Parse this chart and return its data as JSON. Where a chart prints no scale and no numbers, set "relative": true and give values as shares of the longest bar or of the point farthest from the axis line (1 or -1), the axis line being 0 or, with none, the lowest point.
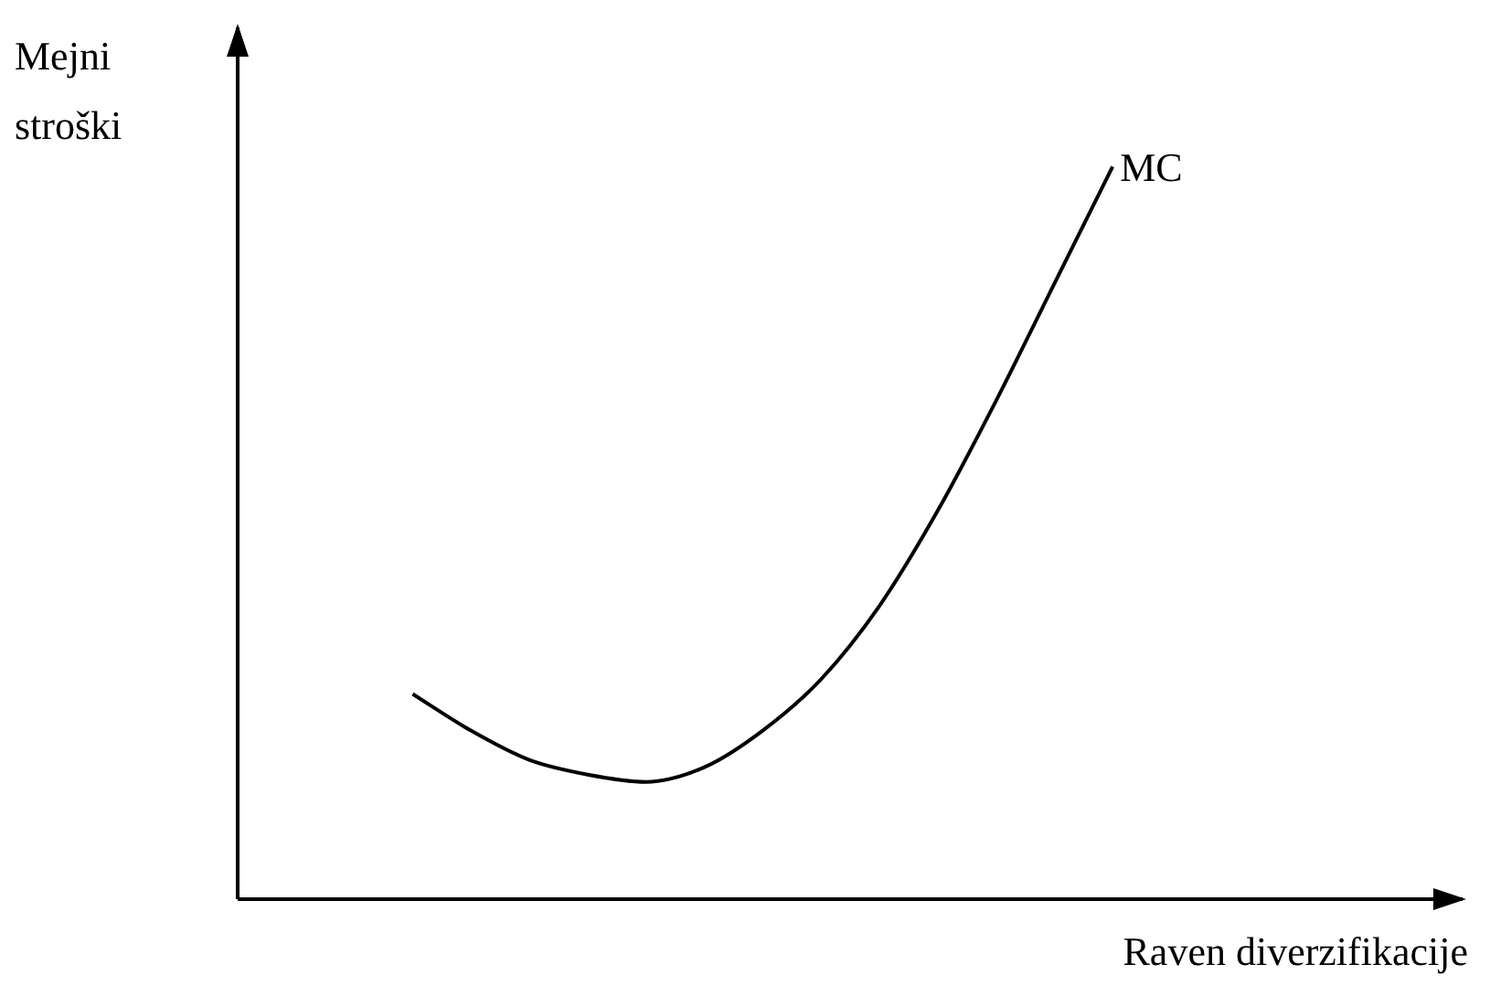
{
  "chart_data": {
    "type": "line",
    "xlabel": "Raven diverzifikacije",
    "ylabel": "Mejni\nstroški",
    "relative": true,
    "marker": "none",
    "line_style": "solid",
    "categories": [
      null,
      null,
      null,
      null,
      null,
      null,
      null,
      null,
      null,
      null,
      null,
      null,
      null,
      null,
      null,
      null,
      null,
      null,
      null,
      null,
      null,
      null
    ],
    "series": [
      {
        "name": "MC",
        "color": "#000000",
        "values": [
          null,
          null,
          null,
          0.28,
          0.23,
          0.19,
          0.17,
          0.16,
          0.18,
          0.23,
          0.3,
          0.4,
          0.53,
          0.68,
          0.84,
          1,
          null,
          null,
          null,
          null,
          null,
          null
        ]
      }
    ]
  }
}
